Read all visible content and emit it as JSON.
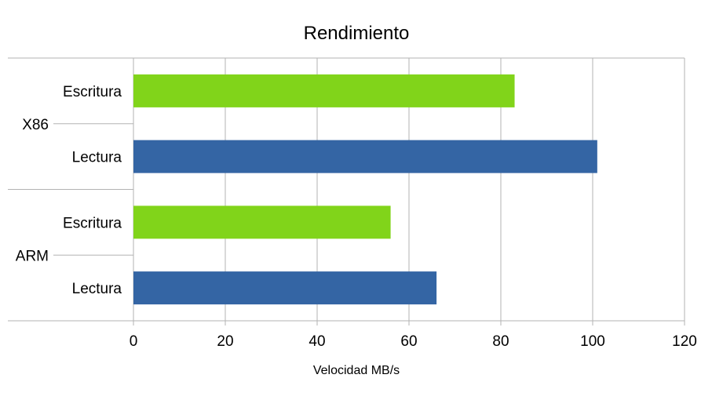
{
  "chart_data": {
    "type": "bar",
    "orientation": "horizontal",
    "title": "Rendimiento",
    "xlabel": "Velocidad MB/s",
    "ylabel": "",
    "xlim": [
      0,
      120
    ],
    "x_ticks": [
      "0",
      "20",
      "40",
      "60",
      "80",
      "100",
      "120"
    ],
    "grid": true,
    "legend": "none",
    "groups": [
      {
        "name": "X86",
        "bars": [
          {
            "label": "Escritura",
            "value": 83,
            "color": "#81d41a"
          },
          {
            "label": "Lectura",
            "value": 101,
            "color": "#3465a4"
          }
        ]
      },
      {
        "name": "ARM",
        "bars": [
          {
            "label": "Escritura",
            "value": 56,
            "color": "#81d41a"
          },
          {
            "label": "Lectura",
            "value": 66,
            "color": "#3465a4"
          }
        ]
      }
    ]
  }
}
